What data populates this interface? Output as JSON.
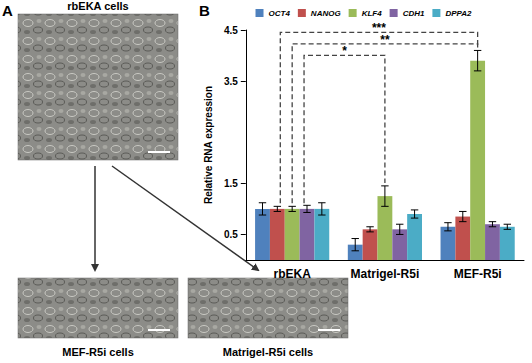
{
  "panel_labels": [
    "A",
    "B"
  ],
  "images": [
    {
      "caption": "rbEKA cells"
    },
    {
      "caption": "MEF-R5i cells"
    },
    {
      "caption": "Matrigel-R5i cells"
    }
  ],
  "chart_data": {
    "type": "bar",
    "categories": [
      "rbEKA",
      "Matrigel-R5i",
      "MEF-R5i"
    ],
    "y_label": "Relative RNA expression",
    "ylim": [
      0,
      4.5
    ],
    "yticks": [
      0.5,
      1.5,
      3.5,
      4.5
    ],
    "grid": false,
    "legend": "top",
    "series": [
      {
        "name": "OCT4",
        "color": "#4f81bd",
        "values": [
          1.0,
          0.3,
          0.65
        ],
        "errors": [
          0.12,
          0.12,
          0.08
        ]
      },
      {
        "name": "NANOG",
        "color": "#c0504d",
        "values": [
          1.0,
          0.6,
          0.85
        ],
        "errors": [
          0.05,
          0.05,
          0.1
        ]
      },
      {
        "name": "KLF4",
        "color": "#9bbb59",
        "values": [
          1.0,
          1.25,
          3.9
        ],
        "errors": [
          0.05,
          0.2,
          0.2
        ]
      },
      {
        "name": "CDH1",
        "color": "#8064a2",
        "values": [
          1.0,
          0.6,
          0.7
        ],
        "errors": [
          0.07,
          0.1,
          0.05
        ]
      },
      {
        "name": "DPPA2",
        "color": "#4bacc6",
        "values": [
          1.0,
          0.9,
          0.65
        ],
        "errors": [
          0.12,
          0.08,
          0.05
        ]
      }
    ],
    "annotations": [
      {
        "text": "***",
        "from": "rbEKA",
        "to": "MEF-R5i",
        "series": "KLF4"
      },
      {
        "text": "**",
        "from": "rbEKA",
        "to": "MEF-R5i",
        "series": "KLF4"
      },
      {
        "text": "*",
        "from": "rbEKA",
        "to": "Matrigel-R5i",
        "series": "KLF4"
      }
    ]
  }
}
